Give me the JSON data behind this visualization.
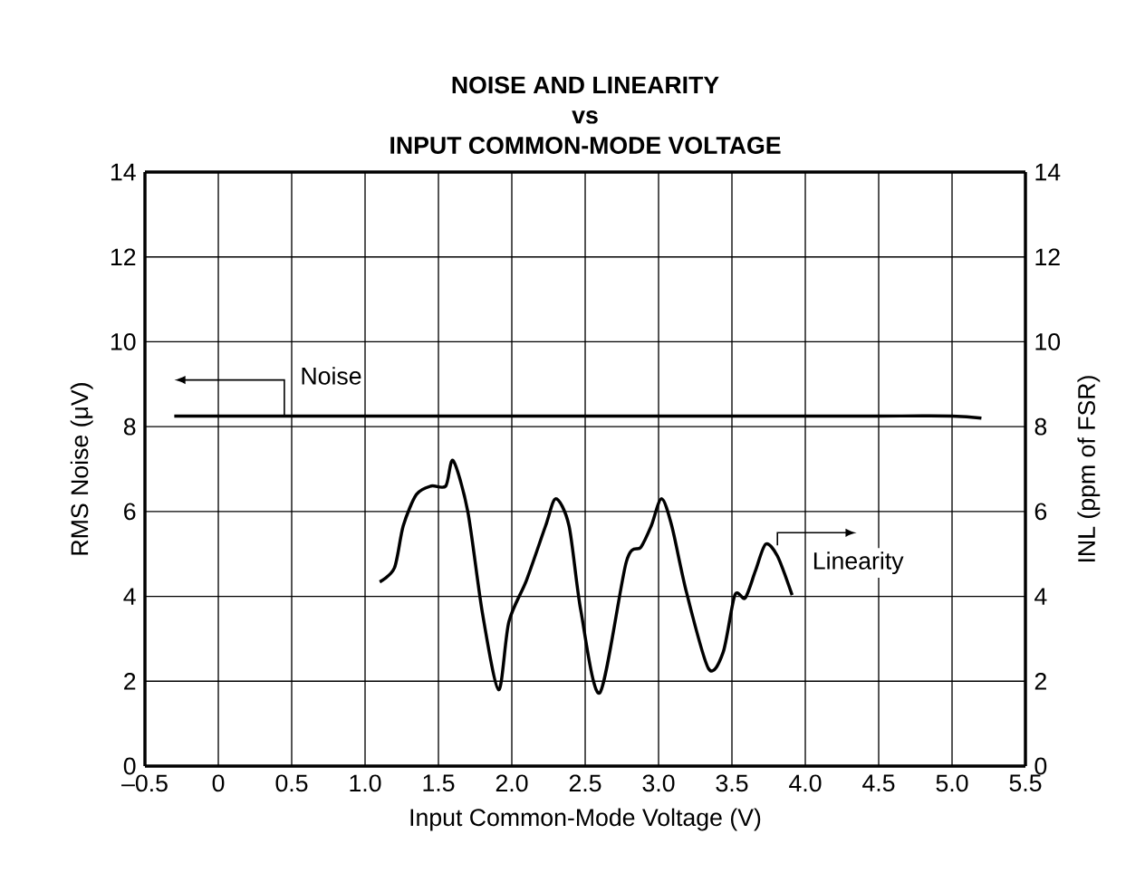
{
  "chart_data": {
    "type": "line",
    "title": "NOISE AND LINEARITY\nvs\nINPUT COMMON-MODE VOLTAGE",
    "xlabel": "Input Common-Mode Voltage (V)",
    "ylabel": "RMS Noise (μV)",
    "y2label": "INL (ppm of FSR)",
    "xlim": [
      -0.5,
      5.5
    ],
    "xticks": [
      {
        "value": -0.5,
        "label": "–0.5"
      },
      0,
      0.5,
      {
        "value": 1,
        "label": "1.0"
      },
      1.5,
      {
        "value": 2,
        "label": "2.0"
      },
      2.5,
      {
        "value": 3,
        "label": "3.0"
      },
      3.5,
      {
        "value": 4,
        "label": "4.0"
      },
      4.5,
      {
        "value": 5,
        "label": "5.0"
      },
      5.5
    ],
    "ylim": [
      0,
      14
    ],
    "yticks": [
      0,
      2,
      4,
      6,
      8,
      10,
      12,
      14
    ],
    "y2lim": [
      0,
      14
    ],
    "y2ticks": [
      0,
      2,
      4,
      6,
      8,
      10,
      12,
      14
    ],
    "grid": true,
    "marker": "none",
    "line_style": "solid",
    "series": [
      {
        "name": "Noise",
        "color": "#000000",
        "x": [
          -0.3,
          0.0,
          0.5,
          1.0,
          1.5,
          2.0,
          2.5,
          3.0,
          3.5,
          4.0,
          4.5,
          5.0,
          5.2
        ],
        "values": [
          8.25,
          8.25,
          8.25,
          8.25,
          8.25,
          8.25,
          8.25,
          8.25,
          8.25,
          8.25,
          8.25,
          8.25,
          8.2
        ]
      },
      {
        "name": "Linearity",
        "color": "#000000",
        "axis": "y2",
        "x": [
          1.1,
          1.2,
          1.26,
          1.35,
          1.45,
          1.55,
          1.6,
          1.7,
          1.8,
          1.91,
          1.98,
          2.1,
          2.23,
          2.3,
          2.39,
          2.47,
          2.6,
          2.78,
          2.88,
          2.95,
          3.02,
          3.09,
          3.19,
          3.34,
          3.44,
          3.52,
          3.59,
          3.66,
          3.73,
          3.81,
          3.91
        ],
        "values": [
          4.34,
          4.67,
          5.66,
          6.4,
          6.6,
          6.6,
          7.2,
          6.0,
          3.6,
          1.8,
          3.4,
          4.38,
          5.66,
          6.3,
          5.66,
          3.67,
          1.73,
          4.81,
          5.16,
          5.66,
          6.3,
          5.66,
          4.1,
          2.3,
          2.68,
          4.03,
          3.96,
          4.6,
          5.23,
          4.95,
          4.03
        ]
      }
    ]
  }
}
